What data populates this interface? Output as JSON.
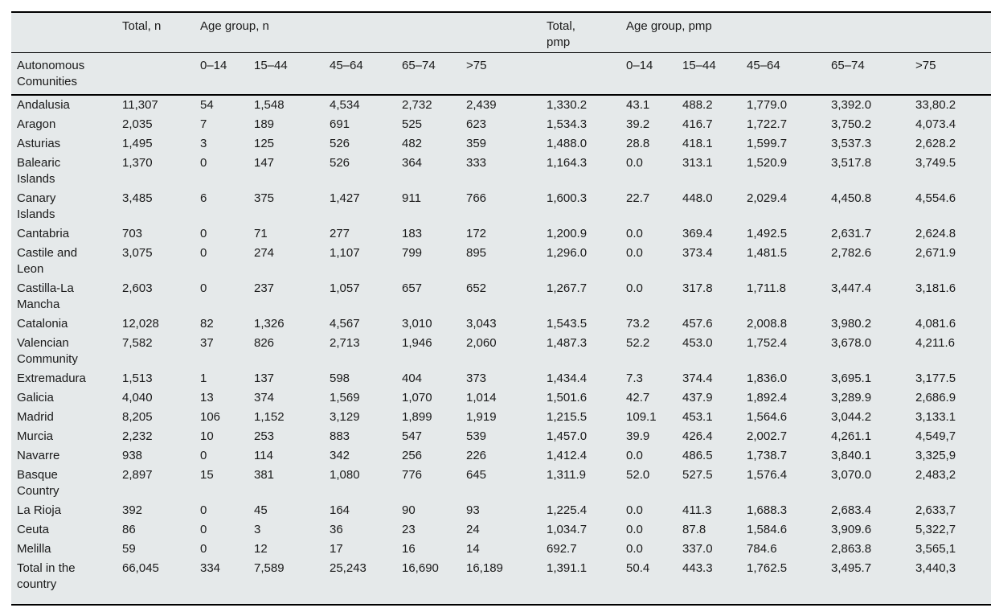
{
  "page": {
    "background_color": "#ffffff",
    "table_background_color": "#e5e9ea",
    "rule_color": "#000000",
    "text_color": "#1a1a1a"
  },
  "table": {
    "col_group_headers": {
      "total_n": "Total, n",
      "age_group_n": "Age group, n",
      "total_pmp": "Total, pmp",
      "age_group_pmp": "Age group, pmp"
    },
    "stub_header": "Autonomous Comunities",
    "age_labels_n": [
      "0–14",
      "15–44",
      "45–64",
      "65–74",
      ">75"
    ],
    "age_labels_pmp": [
      "0–14",
      "15–44",
      "45–64",
      "65–74",
      ">75"
    ],
    "rows": [
      {
        "name": "Andalusia",
        "values": [
          "11,307",
          "54",
          "1,548",
          "4,534",
          "2,732",
          "2,439",
          "1,330.2",
          "43.1",
          "488.2",
          "1,779.0",
          "3,392.0",
          "33,80.2"
        ]
      },
      {
        "name": "Aragon",
        "values": [
          "2,035",
          "7",
          "189",
          "691",
          "525",
          "623",
          "1,534.3",
          "39.2",
          "416.7",
          "1,722.7",
          "3,750.2",
          "4,073.4"
        ]
      },
      {
        "name": "Asturias",
        "values": [
          "1,495",
          "3",
          "125",
          "526",
          "482",
          "359",
          "1,488.0",
          "28.8",
          "418.1",
          "1,599.7",
          "3,537.3",
          "2,628.2"
        ]
      },
      {
        "name": "Balearic Islands",
        "values": [
          "1,370",
          "0",
          "147",
          "526",
          "364",
          "333",
          "1,164.3",
          "0.0",
          "313.1",
          "1,520.9",
          "3,517.8",
          "3,749.5"
        ]
      },
      {
        "name": "Canary Islands",
        "values": [
          "3,485",
          "6",
          "375",
          "1,427",
          "911",
          "766",
          "1,600.3",
          "22.7",
          "448.0",
          "2,029.4",
          "4,450.8",
          "4,554.6"
        ]
      },
      {
        "name": "Cantabria",
        "values": [
          "703",
          "0",
          "71",
          "277",
          "183",
          "172",
          "1,200.9",
          "0.0",
          "369.4",
          "1,492.5",
          "2,631.7",
          "2,624.8"
        ]
      },
      {
        "name": "Castile and Leon",
        "values": [
          "3,075",
          "0",
          "274",
          "1,107",
          "799",
          "895",
          "1,296.0",
          "0.0",
          "373.4",
          "1,481.5",
          "2,782.6",
          "2,671.9"
        ]
      },
      {
        "name": "Castilla-La Mancha",
        "values": [
          "2,603",
          "0",
          "237",
          "1,057",
          "657",
          "652",
          "1,267.7",
          "0.0",
          "317.8",
          "1,711.8",
          "3,447.4",
          "3,181.6"
        ]
      },
      {
        "name": "Catalonia",
        "values": [
          "12,028",
          "82",
          "1,326",
          "4,567",
          "3,010",
          "3,043",
          "1,543.5",
          "73.2",
          "457.6",
          "2,008.8",
          "3,980.2",
          "4,081.6"
        ]
      },
      {
        "name": "Valencian Community",
        "values": [
          "7,582",
          "37",
          "826",
          "2,713",
          "1,946",
          "2,060",
          "1,487.3",
          "52.2",
          "453.0",
          "1,752.4",
          "3,678.0",
          "4,211.6"
        ]
      },
      {
        "name": "Extremadura",
        "values": [
          "1,513",
          "1",
          "137",
          "598",
          "404",
          "373",
          "1,434.4",
          "7.3",
          "374.4",
          "1,836.0",
          "3,695.1",
          "3,177.5"
        ]
      },
      {
        "name": "Galicia",
        "values": [
          "4,040",
          "13",
          "374",
          "1,569",
          "1,070",
          "1,014",
          "1,501.6",
          "42.7",
          "437.9",
          "1,892.4",
          "3,289.9",
          "2,686.9"
        ]
      },
      {
        "name": "Madrid",
        "values": [
          "8,205",
          "106",
          "1,152",
          "3,129",
          "1,899",
          "1,919",
          "1,215.5",
          "109.1",
          "453.1",
          "1,564.6",
          "3,044.2",
          "3,133.1"
        ]
      },
      {
        "name": "Murcia",
        "values": [
          "2,232",
          "10",
          "253",
          "883",
          "547",
          "539",
          "1,457.0",
          "39.9",
          "426.4",
          "2,002.7",
          "4,261.1",
          "4,549,7"
        ]
      },
      {
        "name": "Navarre",
        "values": [
          "938",
          "0",
          "114",
          "342",
          "256",
          "226",
          "1,412.4",
          "0.0",
          "486.5",
          "1,738.7",
          "3,840.1",
          "3,325,9"
        ]
      },
      {
        "name": "Basque Country",
        "values": [
          "2,897",
          "15",
          "381",
          "1,080",
          "776",
          "645",
          "1,311.9",
          "52.0",
          "527.5",
          "1,576.4",
          "3,070.0",
          "2,483,2"
        ]
      },
      {
        "name": "La Rioja",
        "values": [
          "392",
          "0",
          "45",
          "164",
          "90",
          "93",
          "1,225.4",
          "0.0",
          "411.3",
          "1,688.3",
          "2,683.4",
          "2,633,7"
        ]
      },
      {
        "name": "Ceuta",
        "values": [
          "86",
          "0",
          "3",
          "36",
          "23",
          "24",
          "1,034.7",
          "0.0",
          "87.8",
          "1,584.6",
          "3,909.6",
          "5,322,7"
        ]
      },
      {
        "name": "Melilla",
        "values": [
          "59",
          "0",
          "12",
          "17",
          "16",
          "14",
          "692.7",
          "0.0",
          "337.0",
          "784.6",
          "2,863.8",
          "3,565,1"
        ]
      },
      {
        "name": "Total in the country",
        "values": [
          "66,045",
          "334",
          "7,589",
          "25,243",
          "16,690",
          "16,189",
          "1,391.1",
          "50.4",
          "443.3",
          "1,762.5",
          "3,495.7",
          "3,440,3"
        ]
      }
    ]
  }
}
